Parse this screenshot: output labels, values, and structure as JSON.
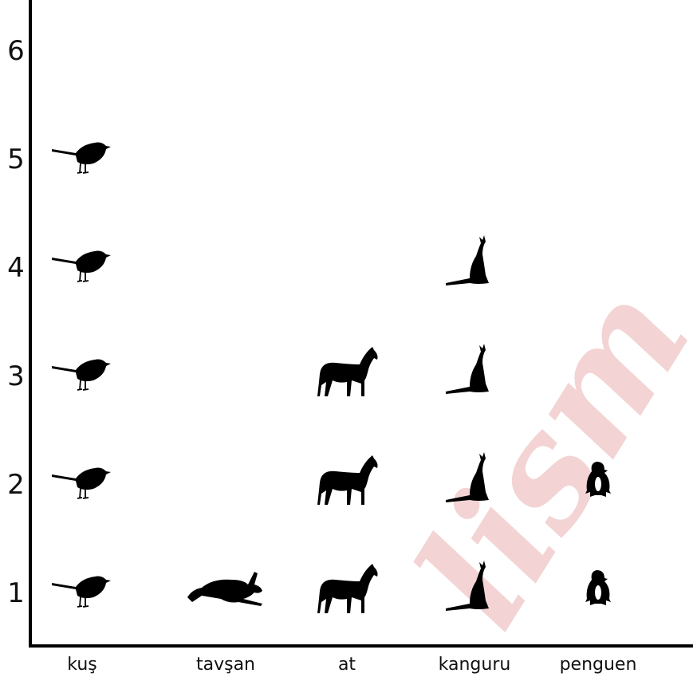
{
  "chart_data": {
    "type": "pictograph",
    "categories": [
      "kuş",
      "tavşan",
      "at",
      "kanguru",
      "penguen"
    ],
    "values": [
      5,
      1,
      3,
      4,
      2
    ],
    "icons": [
      "bird-icon",
      "rabbit-icon",
      "horse-icon",
      "kangaroo-icon",
      "penguin-icon"
    ],
    "y_ticks": [
      "1",
      "2",
      "3",
      "4",
      "5",
      "6"
    ],
    "ylim": [
      0,
      6
    ],
    "title": "",
    "xlabel": "",
    "ylabel": "",
    "grid": false,
    "icon_color": "#000000",
    "axis_color": "#000000",
    "watermark_color": "#f3d3d3"
  }
}
